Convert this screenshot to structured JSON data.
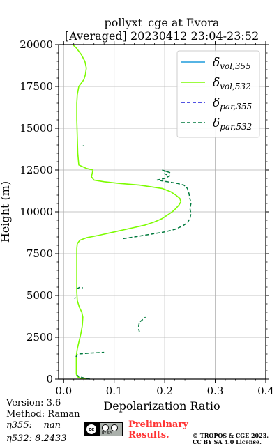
{
  "chart_data": {
    "type": "line",
    "title_line1": "pollyxt_cge at Evora",
    "title_line2": "[Averaged] 20230412 23:04-23:52",
    "xlabel": "Depolarization Ratio",
    "ylabel": "Height (m)",
    "xlim": [
      -0.01,
      0.4
    ],
    "ylim": [
      0,
      20000
    ],
    "xticks": [
      "0.0",
      "0.1",
      "0.2",
      "0.3",
      "0.4"
    ],
    "xtick_values": [
      0.0,
      0.1,
      0.2,
      0.3,
      0.4
    ],
    "yticks": [
      "0",
      "2500",
      "5000",
      "7500",
      "10000",
      "12500",
      "15000",
      "17500",
      "20000"
    ],
    "ytick_values": [
      0,
      2500,
      5000,
      7500,
      10000,
      12500,
      15000,
      17500,
      20000
    ],
    "grid": true,
    "legend_position": "top-right",
    "series": [
      {
        "name": "δvol,355",
        "legend_main": "δ",
        "legend_sub": "vol,355",
        "color": "#1f9bdb",
        "style": "solid",
        "points": []
      },
      {
        "name": "δvol,532",
        "legend_main": "δ",
        "legend_sub": "vol,532",
        "color": "#7cfc00",
        "style": "solid",
        "points": [
          [
            0.045,
            0
          ],
          [
            0.033,
            60
          ],
          [
            0.027,
            150
          ],
          [
            0.025,
            300
          ],
          [
            0.025,
            800
          ],
          [
            0.025,
            1400
          ],
          [
            0.027,
            1800
          ],
          [
            0.03,
            2200
          ],
          [
            0.034,
            2700
          ],
          [
            0.037,
            3200
          ],
          [
            0.038,
            3700
          ],
          [
            0.036,
            4000
          ],
          [
            0.031,
            4300
          ],
          [
            0.027,
            4700
          ],
          [
            0.026,
            5200
          ],
          [
            0.026,
            6000
          ],
          [
            0.026,
            7000
          ],
          [
            0.026,
            7800
          ],
          [
            0.027,
            8100
          ],
          [
            0.032,
            8300
          ],
          [
            0.045,
            8450
          ],
          [
            0.07,
            8600
          ],
          [
            0.1,
            8800
          ],
          [
            0.13,
            9000
          ],
          [
            0.16,
            9200
          ],
          [
            0.18,
            9400
          ],
          [
            0.195,
            9600
          ],
          [
            0.205,
            9800
          ],
          [
            0.215,
            10000
          ],
          [
            0.222,
            10200
          ],
          [
            0.228,
            10400
          ],
          [
            0.232,
            10600
          ],
          [
            0.23,
            10800
          ],
          [
            0.222,
            11000
          ],
          [
            0.212,
            11200
          ],
          [
            0.195,
            11400
          ],
          [
            0.15,
            11600
          ],
          [
            0.11,
            11700
          ],
          [
            0.08,
            11800
          ],
          [
            0.06,
            11900
          ],
          [
            0.055,
            12100
          ],
          [
            0.058,
            12500
          ],
          [
            0.045,
            12600
          ],
          [
            0.03,
            12800
          ],
          [
            0.028,
            13500
          ],
          [
            0.027,
            14500
          ],
          [
            0.026,
            15500
          ],
          [
            0.026,
            16500
          ],
          [
            0.027,
            17000
          ],
          [
            0.03,
            17500
          ],
          [
            0.04,
            17900
          ],
          [
            0.043,
            18200
          ],
          [
            0.045,
            18600
          ],
          [
            0.042,
            19000
          ],
          [
            0.035,
            19400
          ],
          [
            0.025,
            19800
          ],
          [
            0.018,
            20000
          ]
        ]
      },
      {
        "name": "δpar,355",
        "legend_main": "δ",
        "legend_sub": "par,355",
        "color": "#1a1adc",
        "style": "dashed",
        "points": []
      },
      {
        "name": "δpar,532",
        "legend_main": "δ",
        "legend_sub": "par,532",
        "color": "#007a3d",
        "style": "dashed",
        "segments": [
          [
            [
              0.052,
              0
            ],
            [
              0.04,
              70
            ],
            [
              0.03,
              150
            ],
            [
              0.026,
              250
            ]
          ],
          [
            [
              0.024,
              1300
            ],
            [
              0.028,
              1500
            ],
            [
              0.05,
              1550
            ],
            [
              0.08,
              1600
            ]
          ],
          [
            [
              0.15,
              2800
            ],
            [
              0.148,
              3100
            ],
            [
              0.15,
              3400
            ],
            [
              0.158,
              3600
            ],
            [
              0.162,
              3700
            ]
          ],
          [
            [
              0.022,
              4800
            ],
            [
              0.023,
              4900
            ]
          ],
          [
            [
              0.026,
              5400
            ],
            [
              0.033,
              5500
            ],
            [
              0.038,
              5450
            ]
          ],
          [
            [
              0.038,
              13950
            ],
            [
              0.04,
              13950
            ]
          ],
          [
            [
              0.118,
              8400
            ],
            [
              0.14,
              8500
            ],
            [
              0.17,
              8650
            ],
            [
              0.2,
              8800
            ],
            [
              0.22,
              8950
            ],
            [
              0.235,
              9150
            ],
            [
              0.245,
              9350
            ],
            [
              0.25,
              9600
            ],
            [
              0.252,
              9900
            ],
            [
              0.25,
              10200
            ],
            [
              0.252,
              10500
            ],
            [
              0.25,
              10800
            ],
            [
              0.248,
              11100
            ],
            [
              0.245,
              11400
            ],
            [
              0.238,
              11600
            ],
            [
              0.225,
              11700
            ],
            [
              0.205,
              11800
            ],
            [
              0.185,
              11900
            ],
            [
              0.2,
              12000
            ],
            [
              0.21,
              12150
            ],
            [
              0.198,
              12300
            ],
            [
              0.2,
              12450
            ],
            [
              0.21,
              12350
            ],
            [
              0.195,
              12500
            ]
          ]
        ]
      }
    ]
  },
  "info": {
    "version": "Version: 3.6",
    "method": "Method: Raman",
    "eta355": "η355:    nan",
    "eta532": "η532: 8.2433"
  },
  "footer": {
    "cc_badge_text": "cc",
    "cc_tags": "BY    SA",
    "preliminary_line1": "Preliminary",
    "preliminary_line2": "Results.",
    "license_line1": "© TROPOS & CGE 2023.",
    "license_line2": "CC BY SA 4.0 License."
  }
}
